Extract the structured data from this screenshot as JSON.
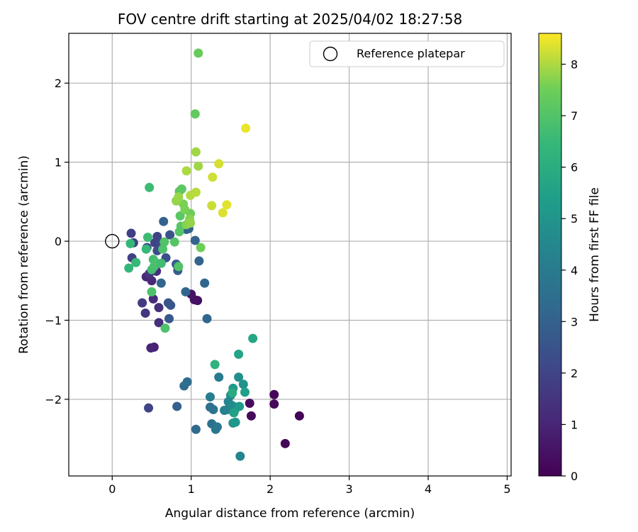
{
  "chart_data": {
    "type": "scatter",
    "title": "FOV centre drift starting at 2025/04/02 18:27:58",
    "xlabel": "Angular distance from reference (arcmin)",
    "ylabel": "Rotation from reference (arcmin)",
    "xlim": [
      -0.55,
      5.05
    ],
    "ylim": [
      -2.97,
      2.63
    ],
    "xticks": [
      0,
      1,
      2,
      3,
      4,
      5
    ],
    "yticks": [
      -2,
      -1,
      0,
      1,
      2
    ],
    "xtick_labels": [
      "0",
      "1",
      "2",
      "3",
      "4",
      "5"
    ],
    "ytick_labels": [
      "−2",
      "−1",
      "0",
      "1",
      "2"
    ],
    "grid": true,
    "legend": {
      "placement": "top-right",
      "entries": [
        {
          "label": "Reference platepar",
          "marker": "open-circle"
        }
      ]
    },
    "reference_point": {
      "x": 0,
      "y": 0,
      "label": "Reference platepar"
    },
    "colorbar": {
      "label": "Hours from first FF file",
      "colormap": "viridis",
      "range": [
        0,
        8.6
      ],
      "ticks": [
        0,
        1,
        2,
        3,
        4,
        5,
        6,
        7,
        8
      ],
      "tick_labels": [
        "0",
        "1",
        "2",
        "3",
        "4",
        "5",
        "6",
        "7",
        "8"
      ]
    },
    "points": [
      {
        "x": 2.37,
        "y": -2.21,
        "c": 0.05
      },
      {
        "x": 2.19,
        "y": -2.56,
        "c": 0.1
      },
      {
        "x": 2.05,
        "y": -1.94,
        "c": 0.15
      },
      {
        "x": 2.05,
        "y": -2.06,
        "c": 0.2
      },
      {
        "x": 1.76,
        "y": -2.21,
        "c": 0.25
      },
      {
        "x": 1.74,
        "y": -2.05,
        "c": 0.3
      },
      {
        "x": 1.08,
        "y": -0.75,
        "c": 0.4
      },
      {
        "x": 1.04,
        "y": -0.74,
        "c": 0.45
      },
      {
        "x": 1.0,
        "y": -0.67,
        "c": 0.5
      },
      {
        "x": 0.53,
        "y": -1.34,
        "c": 0.9
      },
      {
        "x": 0.49,
        "y": -1.35,
        "c": 1.0
      },
      {
        "x": 0.43,
        "y": -0.45,
        "c": 1.0
      },
      {
        "x": 0.5,
        "y": -0.5,
        "c": 1.1
      },
      {
        "x": 0.52,
        "y": -0.73,
        "c": 1.2
      },
      {
        "x": 0.56,
        "y": -0.38,
        "c": 1.25
      },
      {
        "x": 0.59,
        "y": -1.03,
        "c": 1.3
      },
      {
        "x": 0.59,
        "y": -0.84,
        "c": 1.35
      },
      {
        "x": 0.47,
        "y": -0.41,
        "c": 1.4
      },
      {
        "x": 0.42,
        "y": -0.91,
        "c": 1.5
      },
      {
        "x": 0.38,
        "y": -0.78,
        "c": 1.7
      },
      {
        "x": 0.24,
        "y": 0.1,
        "c": 1.8
      },
      {
        "x": 0.27,
        "y": -0.02,
        "c": 1.85
      },
      {
        "x": 0.25,
        "y": -0.21,
        "c": 1.9
      },
      {
        "x": 0.57,
        "y": 0.06,
        "c": 1.95
      },
      {
        "x": 0.54,
        "y": -0.02,
        "c": 2.0
      },
      {
        "x": 0.46,
        "y": -2.11,
        "c": 2.0
      },
      {
        "x": 0.44,
        "y": -0.08,
        "c": 2.1
      },
      {
        "x": 0.62,
        "y": -0.02,
        "c": 2.2
      },
      {
        "x": 0.57,
        "y": -0.12,
        "c": 2.3
      },
      {
        "x": 0.68,
        "y": -0.21,
        "c": 2.4
      },
      {
        "x": 0.73,
        "y": 0.08,
        "c": 2.5
      },
      {
        "x": 0.71,
        "y": -0.78,
        "c": 2.55
      },
      {
        "x": 0.74,
        "y": -0.81,
        "c": 2.6
      },
      {
        "x": 0.72,
        "y": -0.98,
        "c": 2.7
      },
      {
        "x": 0.83,
        "y": -0.37,
        "c": 2.8
      },
      {
        "x": 0.81,
        "y": -0.29,
        "c": 2.85
      },
      {
        "x": 0.82,
        "y": -2.09,
        "c": 2.9
      },
      {
        "x": 0.94,
        "y": 0.15,
        "c": 3.0
      },
      {
        "x": 0.97,
        "y": 0.16,
        "c": 3.05
      },
      {
        "x": 1.05,
        "y": 0.01,
        "c": 3.1
      },
      {
        "x": 1.1,
        "y": -0.25,
        "c": 3.1
      },
      {
        "x": 0.93,
        "y": -0.64,
        "c": 3.2
      },
      {
        "x": 0.62,
        "y": -0.53,
        "c": 3.2
      },
      {
        "x": 0.65,
        "y": 0.25,
        "c": 3.0
      },
      {
        "x": 1.06,
        "y": -2.38,
        "c": 3.3
      },
      {
        "x": 1.17,
        "y": -0.53,
        "c": 3.2
      },
      {
        "x": 1.2,
        "y": -0.98,
        "c": 3.2
      },
      {
        "x": 0.91,
        "y": -1.83,
        "c": 3.4
      },
      {
        "x": 0.95,
        "y": -1.78,
        "c": 3.45
      },
      {
        "x": 1.24,
        "y": -2.1,
        "c": 3.5
      },
      {
        "x": 1.26,
        "y": -2.31,
        "c": 3.6
      },
      {
        "x": 1.28,
        "y": -2.13,
        "c": 3.7
      },
      {
        "x": 1.31,
        "y": -2.38,
        "c": 3.8
      },
      {
        "x": 1.33,
        "y": -2.35,
        "c": 3.85
      },
      {
        "x": 1.35,
        "y": -1.72,
        "c": 4.0
      },
      {
        "x": 1.24,
        "y": -1.97,
        "c": 4.1
      },
      {
        "x": 1.42,
        "y": -2.14,
        "c": 4.2
      },
      {
        "x": 1.46,
        "y": -2.13,
        "c": 4.3
      },
      {
        "x": 1.47,
        "y": -2.03,
        "c": 4.4
      },
      {
        "x": 1.5,
        "y": -1.95,
        "c": 4.5
      },
      {
        "x": 1.52,
        "y": -2.08,
        "c": 4.6
      },
      {
        "x": 1.55,
        "y": -2.14,
        "c": 4.7
      },
      {
        "x": 1.58,
        "y": -2.1,
        "c": 4.75
      },
      {
        "x": 1.6,
        "y": -1.72,
        "c": 4.8
      },
      {
        "x": 1.66,
        "y": -1.81,
        "c": 4.85
      },
      {
        "x": 1.62,
        "y": -2.72,
        "c": 4.4
      },
      {
        "x": 1.53,
        "y": -2.3,
        "c": 5.0
      },
      {
        "x": 1.56,
        "y": -2.29,
        "c": 5.1
      },
      {
        "x": 1.53,
        "y": -1.86,
        "c": 5.2
      },
      {
        "x": 1.61,
        "y": -2.09,
        "c": 5.3
      },
      {
        "x": 1.68,
        "y": -1.91,
        "c": 5.4
      },
      {
        "x": 1.6,
        "y": -1.43,
        "c": 5.6
      },
      {
        "x": 1.78,
        "y": -1.23,
        "c": 5.7
      },
      {
        "x": 1.54,
        "y": -2.17,
        "c": 5.5
      },
      {
        "x": 1.52,
        "y": -1.92,
        "c": 5.9
      },
      {
        "x": 1.3,
        "y": -1.56,
        "c": 6.2
      },
      {
        "x": 0.21,
        "y": -0.34,
        "c": 6.4
      },
      {
        "x": 0.23,
        "y": -0.03,
        "c": 6.45
      },
      {
        "x": 0.3,
        "y": -0.27,
        "c": 6.5
      },
      {
        "x": 0.43,
        "y": -0.1,
        "c": 6.5
      },
      {
        "x": 0.45,
        "y": 0.05,
        "c": 6.6
      },
      {
        "x": 0.47,
        "y": 0.68,
        "c": 6.6
      },
      {
        "x": 0.5,
        "y": -0.36,
        "c": 6.7
      },
      {
        "x": 0.52,
        "y": -0.23,
        "c": 6.75
      },
      {
        "x": 0.53,
        "y": -0.32,
        "c": 6.8
      },
      {
        "x": 0.55,
        "y": -0.27,
        "c": 6.85
      },
      {
        "x": 0.5,
        "y": -0.64,
        "c": 6.9
      },
      {
        "x": 0.67,
        "y": -1.1,
        "c": 6.9
      },
      {
        "x": 0.62,
        "y": -0.28,
        "c": 6.7
      },
      {
        "x": 0.64,
        "y": -0.1,
        "c": 6.95
      },
      {
        "x": 0.66,
        "y": -0.01,
        "c": 7.0
      },
      {
        "x": 0.79,
        "y": -0.01,
        "c": 7.05
      },
      {
        "x": 0.84,
        "y": -0.32,
        "c": 7.0
      },
      {
        "x": 0.85,
        "y": 0.12,
        "c": 7.05
      },
      {
        "x": 0.87,
        "y": 0.19,
        "c": 7.1
      },
      {
        "x": 0.86,
        "y": 0.32,
        "c": 7.15
      },
      {
        "x": 0.85,
        "y": 0.63,
        "c": 7.2
      },
      {
        "x": 0.88,
        "y": 0.66,
        "c": 7.2
      },
      {
        "x": 1.05,
        "y": 1.61,
        "c": 7.3
      },
      {
        "x": 1.09,
        "y": 2.38,
        "c": 7.4
      },
      {
        "x": 0.99,
        "y": 0.35,
        "c": 7.5
      },
      {
        "x": 1.12,
        "y": -0.08,
        "c": 7.5
      },
      {
        "x": 0.9,
        "y": 0.47,
        "c": 7.6
      },
      {
        "x": 0.92,
        "y": 0.4,
        "c": 7.6
      },
      {
        "x": 0.94,
        "y": 0.21,
        "c": 7.7
      },
      {
        "x": 0.98,
        "y": 0.28,
        "c": 7.7
      },
      {
        "x": 0.99,
        "y": 0.23,
        "c": 7.8
      },
      {
        "x": 0.81,
        "y": 0.51,
        "c": 7.8
      },
      {
        "x": 0.84,
        "y": 0.56,
        "c": 7.85
      },
      {
        "x": 1.06,
        "y": 1.13,
        "c": 7.9
      },
      {
        "x": 1.09,
        "y": 0.95,
        "c": 7.9
      },
      {
        "x": 0.94,
        "y": 0.89,
        "c": 8.0
      },
      {
        "x": 0.99,
        "y": 0.58,
        "c": 8.05
      },
      {
        "x": 1.06,
        "y": 0.62,
        "c": 8.1
      },
      {
        "x": 1.26,
        "y": 0.45,
        "c": 8.2
      },
      {
        "x": 1.27,
        "y": 0.81,
        "c": 8.25
      },
      {
        "x": 1.35,
        "y": 0.98,
        "c": 8.3
      },
      {
        "x": 1.4,
        "y": 0.36,
        "c": 8.35
      },
      {
        "x": 1.45,
        "y": 0.46,
        "c": 8.4
      },
      {
        "x": 1.69,
        "y": 1.43,
        "c": 8.45
      }
    ]
  }
}
